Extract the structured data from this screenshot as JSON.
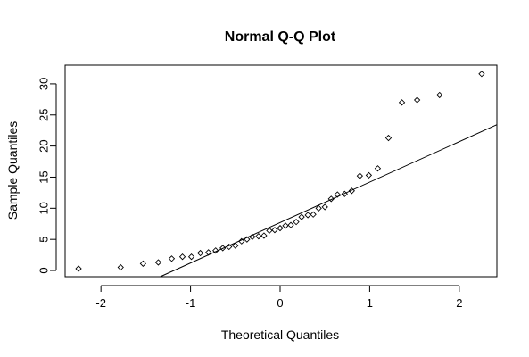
{
  "chart_data": {
    "type": "scatter",
    "title": "Normal Q-Q Plot",
    "xlabel": "Theoretical Quantiles",
    "ylabel": "Sample Quantiles",
    "xlim": [
      -2.4,
      2.42
    ],
    "ylim": [
      -1.0,
      33.0
    ],
    "x_ticks": [
      -2,
      -1,
      0,
      1,
      2
    ],
    "x_tick_labels": [
      "-2",
      "-1",
      "0",
      "1",
      "2"
    ],
    "y_ticks": [
      0,
      5,
      10,
      15,
      20,
      25,
      30
    ],
    "y_tick_labels": [
      "0",
      "5",
      "10",
      "15",
      "20",
      "25",
      "30"
    ],
    "grid": false,
    "reference_line": {
      "intercept": 7.7,
      "slope": 6.5
    },
    "x": [
      -2.25,
      -1.78,
      -1.53,
      -1.36,
      -1.21,
      -1.09,
      -0.99,
      -0.89,
      -0.8,
      -0.72,
      -0.64,
      -0.57,
      -0.5,
      -0.43,
      -0.37,
      -0.31,
      -0.24,
      -0.18,
      -0.12,
      -0.06,
      0.0,
      0.06,
      0.12,
      0.18,
      0.24,
      0.31,
      0.37,
      0.43,
      0.5,
      0.57,
      0.64,
      0.72,
      0.8,
      0.89,
      0.99,
      1.09,
      1.21,
      1.36,
      1.53,
      1.78,
      2.25
    ],
    "y": [
      0.3,
      0.5,
      1.1,
      1.3,
      1.9,
      2.2,
      2.2,
      2.8,
      2.9,
      3.2,
      3.6,
      3.8,
      4.0,
      4.7,
      5.0,
      5.4,
      5.5,
      5.6,
      6.4,
      6.5,
      6.8,
      7.2,
      7.3,
      7.8,
      8.6,
      8.9,
      9.0,
      10.0,
      10.2,
      11.5,
      12.2,
      12.3,
      12.8,
      15.2,
      15.3,
      16.4,
      21.3,
      27.0,
      27.4,
      28.2,
      31.6
    ]
  }
}
